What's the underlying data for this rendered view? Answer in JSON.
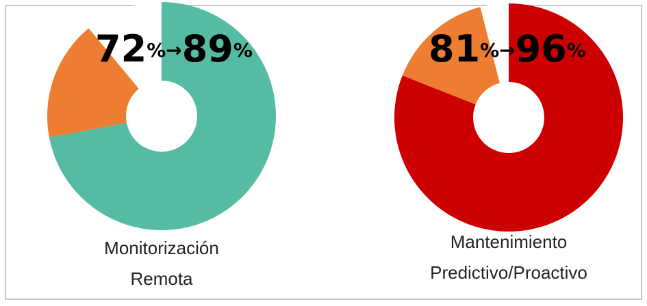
{
  "charts": [
    {
      "type": "pie",
      "hole": true,
      "categories": [
        null,
        null,
        null
      ],
      "values": [
        72,
        17,
        11
      ],
      "colors": [
        "#56bba3",
        "#ed7d31",
        "#ffffff"
      ],
      "headline": {
        "from": "72",
        "unit": "%",
        "arrow": "→",
        "to": "89"
      },
      "label": [
        "Monitorización",
        "Remota"
      ]
    },
    {
      "type": "pie",
      "hole": true,
      "categories": [
        null,
        null,
        null
      ],
      "values": [
        81,
        15,
        4
      ],
      "colors": [
        "#cc0000",
        "#ed7d31",
        "#ffffff"
      ],
      "headline": {
        "from": "81",
        "unit": "%",
        "arrow": "→",
        "to": "96"
      },
      "label": [
        "Mantenimiento",
        "Predictivo/Proactivo"
      ]
    }
  ]
}
